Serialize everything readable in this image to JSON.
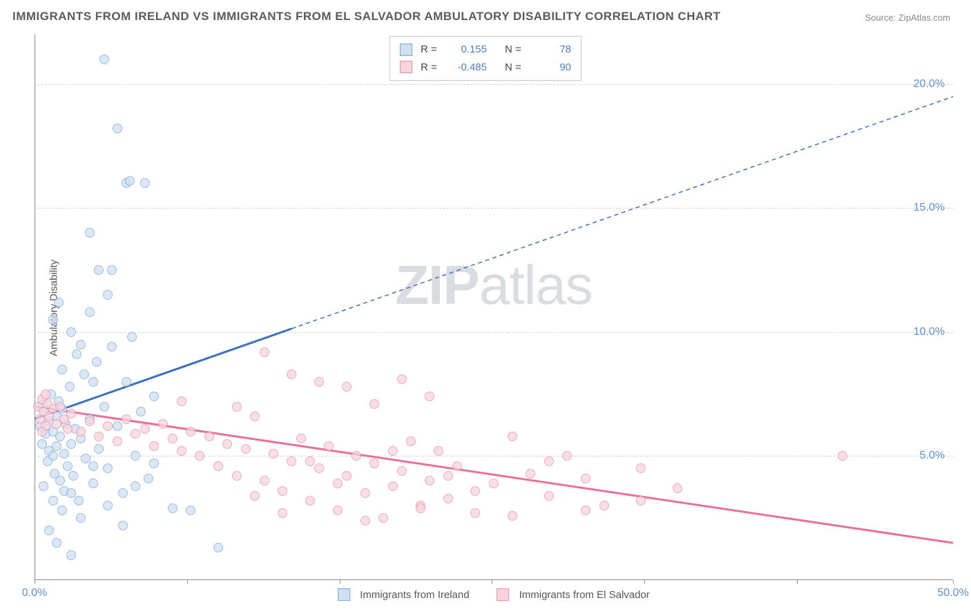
{
  "title": "IMMIGRANTS FROM IRELAND VS IMMIGRANTS FROM EL SALVADOR AMBULATORY DISABILITY CORRELATION CHART",
  "source_prefix": "Source: ",
  "source_name": "ZipAtlas.com",
  "ylabel": "Ambulatory Disability",
  "watermark_bold": "ZIP",
  "watermark_light": "atlas",
  "chart": {
    "type": "scatter",
    "xlim": [
      0,
      50
    ],
    "ylim": [
      0,
      22
    ],
    "xtick_positions": [
      0,
      8.3,
      16.6,
      24.9,
      33.2,
      41.5,
      50
    ],
    "xtick_labels": {
      "0": "0.0%",
      "50": "50.0%"
    },
    "ytick_values": [
      5,
      10,
      15,
      20
    ],
    "ytick_labels": [
      "5.0%",
      "10.0%",
      "15.0%",
      "20.0%"
    ],
    "grid_color": "#d5d5d5",
    "axis_color": "#888888",
    "tick_label_color": "#5b8fd9",
    "background": "#ffffff",
    "point_radius": 7,
    "series": [
      {
        "name": "Immigrants from Ireland",
        "fill": "#cfe0f2",
        "stroke": "#7aa8d6",
        "line_fill": "#3b6fc3",
        "R": "0.155",
        "N": "78",
        "trend": {
          "x1": 0,
          "y1": 6.5,
          "x2": 50,
          "y2": 19.5,
          "solid_until_x": 14
        },
        "points": [
          [
            0.3,
            6.2
          ],
          [
            0.4,
            5.5
          ],
          [
            0.5,
            7.1
          ],
          [
            0.6,
            5.9
          ],
          [
            0.6,
            6.8
          ],
          [
            0.7,
            4.8
          ],
          [
            0.8,
            6.4
          ],
          [
            0.8,
            5.2
          ],
          [
            0.9,
            7.5
          ],
          [
            1.0,
            5.0
          ],
          [
            1.0,
            6.0
          ],
          [
            1.1,
            4.3
          ],
          [
            1.2,
            6.6
          ],
          [
            1.2,
            5.4
          ],
          [
            1.3,
            7.2
          ],
          [
            1.4,
            4.0
          ],
          [
            1.4,
            5.8
          ],
          [
            1.5,
            6.9
          ],
          [
            1.6,
            3.6
          ],
          [
            1.6,
            5.1
          ],
          [
            1.7,
            6.3
          ],
          [
            1.8,
            4.6
          ],
          [
            1.9,
            7.8
          ],
          [
            2.0,
            5.5
          ],
          [
            2.1,
            4.2
          ],
          [
            2.2,
            6.1
          ],
          [
            2.4,
            3.2
          ],
          [
            2.5,
            5.7
          ],
          [
            2.7,
            8.3
          ],
          [
            2.8,
            4.9
          ],
          [
            3.0,
            6.5
          ],
          [
            3.2,
            3.9
          ],
          [
            3.4,
            8.8
          ],
          [
            3.5,
            5.3
          ],
          [
            3.8,
            7.0
          ],
          [
            4.0,
            4.5
          ],
          [
            4.2,
            9.4
          ],
          [
            4.5,
            6.2
          ],
          [
            4.8,
            3.5
          ],
          [
            5.0,
            8.0
          ],
          [
            5.3,
            9.8
          ],
          [
            5.5,
            5.0
          ],
          [
            5.8,
            6.8
          ],
          [
            6.2,
            4.1
          ],
          [
            6.5,
            7.4
          ],
          [
            1.0,
            10.5
          ],
          [
            1.3,
            11.2
          ],
          [
            2.0,
            10.0
          ],
          [
            2.3,
            9.1
          ],
          [
            3.0,
            10.8
          ],
          [
            3.5,
            12.5
          ],
          [
            4.0,
            11.5
          ],
          [
            1.5,
            8.5
          ],
          [
            2.5,
            9.5
          ],
          [
            3.2,
            8.0
          ],
          [
            3.8,
            21.0
          ],
          [
            4.5,
            18.2
          ],
          [
            5.0,
            16.0
          ],
          [
            5.2,
            16.1
          ],
          [
            6.0,
            16.0
          ],
          [
            4.2,
            12.5
          ],
          [
            3.0,
            14.0
          ],
          [
            0.5,
            3.8
          ],
          [
            1.0,
            3.2
          ],
          [
            1.5,
            2.8
          ],
          [
            2.0,
            3.5
          ],
          [
            2.5,
            2.5
          ],
          [
            3.2,
            4.6
          ],
          [
            4.0,
            3.0
          ],
          [
            4.8,
            2.2
          ],
          [
            5.5,
            3.8
          ],
          [
            6.5,
            4.7
          ],
          [
            7.5,
            2.9
          ],
          [
            8.5,
            2.8
          ],
          [
            10.0,
            1.3
          ],
          [
            2.0,
            1.0
          ],
          [
            1.2,
            1.5
          ],
          [
            0.8,
            2.0
          ]
        ]
      },
      {
        "name": "Immigrants from El Salvador",
        "fill": "#f8d5dd",
        "stroke": "#e68fa5",
        "line_fill": "#e97196",
        "R": "-0.485",
        "N": "90",
        "trend": {
          "x1": 0,
          "y1": 7.0,
          "x2": 50,
          "y2": 1.5,
          "solid_until_x": 50
        },
        "points": [
          [
            0.2,
            7.0
          ],
          [
            0.3,
            6.5
          ],
          [
            0.4,
            7.3
          ],
          [
            0.5,
            6.8
          ],
          [
            0.6,
            6.2
          ],
          [
            0.7,
            7.1
          ],
          [
            0.8,
            6.6
          ],
          [
            1.0,
            6.9
          ],
          [
            1.2,
            6.3
          ],
          [
            1.4,
            7.0
          ],
          [
            1.6,
            6.5
          ],
          [
            1.8,
            6.1
          ],
          [
            2.0,
            6.7
          ],
          [
            2.5,
            6.0
          ],
          [
            3.0,
            6.4
          ],
          [
            3.5,
            5.8
          ],
          [
            4.0,
            6.2
          ],
          [
            4.5,
            5.6
          ],
          [
            5.0,
            6.5
          ],
          [
            5.5,
            5.9
          ],
          [
            6.0,
            6.1
          ],
          [
            6.5,
            5.4
          ],
          [
            7.0,
            6.3
          ],
          [
            7.5,
            5.7
          ],
          [
            8.0,
            5.2
          ],
          [
            8.5,
            6.0
          ],
          [
            9.0,
            5.0
          ],
          [
            9.5,
            5.8
          ],
          [
            10.0,
            4.6
          ],
          [
            10.5,
            5.5
          ],
          [
            11.0,
            4.2
          ],
          [
            11.5,
            5.3
          ],
          [
            12.0,
            6.6
          ],
          [
            12.5,
            4.0
          ],
          [
            13.0,
            5.1
          ],
          [
            13.5,
            3.6
          ],
          [
            14.0,
            4.8
          ],
          [
            14.5,
            5.7
          ],
          [
            15.0,
            3.2
          ],
          [
            15.5,
            4.5
          ],
          [
            16.0,
            5.4
          ],
          [
            16.5,
            2.8
          ],
          [
            17.0,
            4.2
          ],
          [
            17.5,
            5.0
          ],
          [
            18.0,
            3.5
          ],
          [
            18.5,
            4.7
          ],
          [
            19.0,
            2.5
          ],
          [
            19.5,
            3.8
          ],
          [
            20.0,
            4.4
          ],
          [
            20.5,
            5.6
          ],
          [
            21.0,
            3.0
          ],
          [
            21.5,
            4.0
          ],
          [
            22.0,
            5.2
          ],
          [
            22.5,
            3.3
          ],
          [
            23.0,
            4.6
          ],
          [
            24.0,
            2.7
          ],
          [
            25.0,
            3.9
          ],
          [
            26.0,
            5.8
          ],
          [
            27.0,
            4.3
          ],
          [
            28.0,
            3.4
          ],
          [
            29.0,
            5.0
          ],
          [
            30.0,
            4.1
          ],
          [
            31.0,
            3.0
          ],
          [
            33.0,
            4.5
          ],
          [
            35.0,
            3.7
          ],
          [
            8.0,
            7.2
          ],
          [
            11.0,
            7.0
          ],
          [
            12.5,
            9.2
          ],
          [
            14.0,
            8.3
          ],
          [
            15.5,
            8.0
          ],
          [
            17.0,
            7.8
          ],
          [
            18.5,
            7.1
          ],
          [
            20.0,
            8.1
          ],
          [
            21.5,
            7.4
          ],
          [
            12.0,
            3.4
          ],
          [
            13.5,
            2.7
          ],
          [
            15.0,
            4.8
          ],
          [
            16.5,
            3.9
          ],
          [
            18.0,
            2.4
          ],
          [
            19.5,
            5.2
          ],
          [
            21.0,
            2.9
          ],
          [
            22.5,
            4.2
          ],
          [
            24.0,
            3.6
          ],
          [
            26.0,
            2.6
          ],
          [
            28.0,
            4.8
          ],
          [
            30.0,
            2.8
          ],
          [
            33.0,
            3.2
          ],
          [
            44.0,
            5.0
          ],
          [
            0.4,
            6.0
          ],
          [
            0.6,
            7.5
          ]
        ]
      }
    ]
  },
  "legend_top": {
    "r_label": "R =",
    "n_label": "N ="
  },
  "legend_bottom": [
    "Immigrants from Ireland",
    "Immigrants from El Salvador"
  ]
}
